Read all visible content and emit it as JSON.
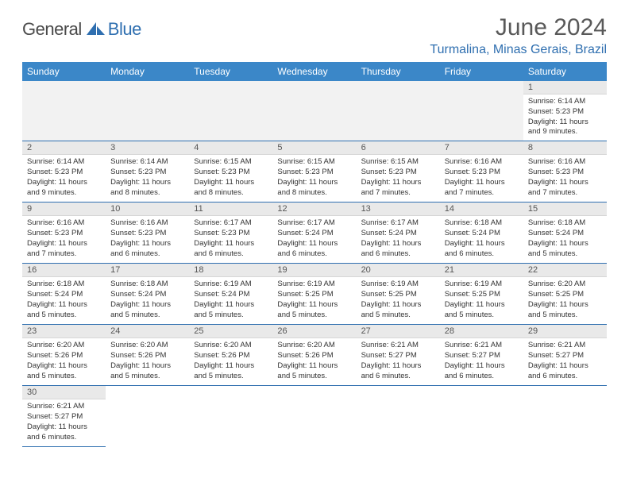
{
  "brand": {
    "part1": "General",
    "part2": "Blue",
    "color_dark": "#4a4a4a",
    "color_blue": "#2f6fb0"
  },
  "title": "June 2024",
  "location": "Turmalina, Minas Gerais, Brazil",
  "colors": {
    "header_bg": "#3b87c8",
    "header_text": "#ffffff",
    "daynum_bg": "#e9e9e9",
    "border": "#2f6fb0",
    "background": "#ffffff"
  },
  "weekdays": [
    "Sunday",
    "Monday",
    "Tuesday",
    "Wednesday",
    "Thursday",
    "Friday",
    "Saturday"
  ],
  "weeks": [
    [
      null,
      null,
      null,
      null,
      null,
      null,
      {
        "n": "1",
        "sr": "Sunrise: 6:14 AM",
        "ss": "Sunset: 5:23 PM",
        "dl": "Daylight: 11 hours and 9 minutes."
      }
    ],
    [
      {
        "n": "2",
        "sr": "Sunrise: 6:14 AM",
        "ss": "Sunset: 5:23 PM",
        "dl": "Daylight: 11 hours and 9 minutes."
      },
      {
        "n": "3",
        "sr": "Sunrise: 6:14 AM",
        "ss": "Sunset: 5:23 PM",
        "dl": "Daylight: 11 hours and 8 minutes."
      },
      {
        "n": "4",
        "sr": "Sunrise: 6:15 AM",
        "ss": "Sunset: 5:23 PM",
        "dl": "Daylight: 11 hours and 8 minutes."
      },
      {
        "n": "5",
        "sr": "Sunrise: 6:15 AM",
        "ss": "Sunset: 5:23 PM",
        "dl": "Daylight: 11 hours and 8 minutes."
      },
      {
        "n": "6",
        "sr": "Sunrise: 6:15 AM",
        "ss": "Sunset: 5:23 PM",
        "dl": "Daylight: 11 hours and 7 minutes."
      },
      {
        "n": "7",
        "sr": "Sunrise: 6:16 AM",
        "ss": "Sunset: 5:23 PM",
        "dl": "Daylight: 11 hours and 7 minutes."
      },
      {
        "n": "8",
        "sr": "Sunrise: 6:16 AM",
        "ss": "Sunset: 5:23 PM",
        "dl": "Daylight: 11 hours and 7 minutes."
      }
    ],
    [
      {
        "n": "9",
        "sr": "Sunrise: 6:16 AM",
        "ss": "Sunset: 5:23 PM",
        "dl": "Daylight: 11 hours and 7 minutes."
      },
      {
        "n": "10",
        "sr": "Sunrise: 6:16 AM",
        "ss": "Sunset: 5:23 PM",
        "dl": "Daylight: 11 hours and 6 minutes."
      },
      {
        "n": "11",
        "sr": "Sunrise: 6:17 AM",
        "ss": "Sunset: 5:23 PM",
        "dl": "Daylight: 11 hours and 6 minutes."
      },
      {
        "n": "12",
        "sr": "Sunrise: 6:17 AM",
        "ss": "Sunset: 5:24 PM",
        "dl": "Daylight: 11 hours and 6 minutes."
      },
      {
        "n": "13",
        "sr": "Sunrise: 6:17 AM",
        "ss": "Sunset: 5:24 PM",
        "dl": "Daylight: 11 hours and 6 minutes."
      },
      {
        "n": "14",
        "sr": "Sunrise: 6:18 AM",
        "ss": "Sunset: 5:24 PM",
        "dl": "Daylight: 11 hours and 6 minutes."
      },
      {
        "n": "15",
        "sr": "Sunrise: 6:18 AM",
        "ss": "Sunset: 5:24 PM",
        "dl": "Daylight: 11 hours and 5 minutes."
      }
    ],
    [
      {
        "n": "16",
        "sr": "Sunrise: 6:18 AM",
        "ss": "Sunset: 5:24 PM",
        "dl": "Daylight: 11 hours and 5 minutes."
      },
      {
        "n": "17",
        "sr": "Sunrise: 6:18 AM",
        "ss": "Sunset: 5:24 PM",
        "dl": "Daylight: 11 hours and 5 minutes."
      },
      {
        "n": "18",
        "sr": "Sunrise: 6:19 AM",
        "ss": "Sunset: 5:24 PM",
        "dl": "Daylight: 11 hours and 5 minutes."
      },
      {
        "n": "19",
        "sr": "Sunrise: 6:19 AM",
        "ss": "Sunset: 5:25 PM",
        "dl": "Daylight: 11 hours and 5 minutes."
      },
      {
        "n": "20",
        "sr": "Sunrise: 6:19 AM",
        "ss": "Sunset: 5:25 PM",
        "dl": "Daylight: 11 hours and 5 minutes."
      },
      {
        "n": "21",
        "sr": "Sunrise: 6:19 AM",
        "ss": "Sunset: 5:25 PM",
        "dl": "Daylight: 11 hours and 5 minutes."
      },
      {
        "n": "22",
        "sr": "Sunrise: 6:20 AM",
        "ss": "Sunset: 5:25 PM",
        "dl": "Daylight: 11 hours and 5 minutes."
      }
    ],
    [
      {
        "n": "23",
        "sr": "Sunrise: 6:20 AM",
        "ss": "Sunset: 5:26 PM",
        "dl": "Daylight: 11 hours and 5 minutes."
      },
      {
        "n": "24",
        "sr": "Sunrise: 6:20 AM",
        "ss": "Sunset: 5:26 PM",
        "dl": "Daylight: 11 hours and 5 minutes."
      },
      {
        "n": "25",
        "sr": "Sunrise: 6:20 AM",
        "ss": "Sunset: 5:26 PM",
        "dl": "Daylight: 11 hours and 5 minutes."
      },
      {
        "n": "26",
        "sr": "Sunrise: 6:20 AM",
        "ss": "Sunset: 5:26 PM",
        "dl": "Daylight: 11 hours and 5 minutes."
      },
      {
        "n": "27",
        "sr": "Sunrise: 6:21 AM",
        "ss": "Sunset: 5:27 PM",
        "dl": "Daylight: 11 hours and 6 minutes."
      },
      {
        "n": "28",
        "sr": "Sunrise: 6:21 AM",
        "ss": "Sunset: 5:27 PM",
        "dl": "Daylight: 11 hours and 6 minutes."
      },
      {
        "n": "29",
        "sr": "Sunrise: 6:21 AM",
        "ss": "Sunset: 5:27 PM",
        "dl": "Daylight: 11 hours and 6 minutes."
      }
    ],
    [
      {
        "n": "30",
        "sr": "Sunrise: 6:21 AM",
        "ss": "Sunset: 5:27 PM",
        "dl": "Daylight: 11 hours and 6 minutes."
      },
      null,
      null,
      null,
      null,
      null,
      null
    ]
  ]
}
